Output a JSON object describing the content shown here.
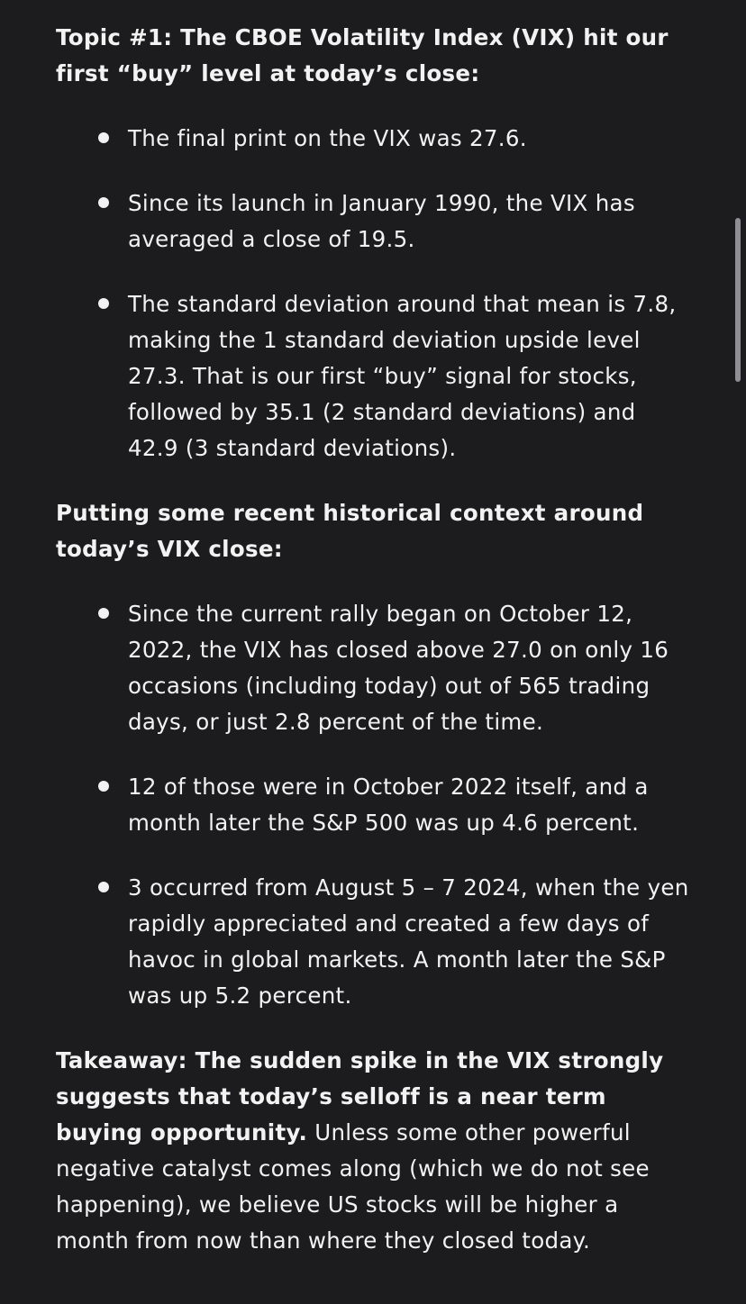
{
  "topic1": {
    "heading": "Topic #1: The CBOE Volatility Index (VIX) hit our first “buy” level at today’s close:",
    "bullets": [
      "The final print on the VIX was 27.6.",
      "Since its launch in January 1990, the VIX has averaged a close of 19.5.",
      "The standard deviation around that mean is 7.8, making the 1 standard deviation upside level 27.3. That is our first “buy” signal for stocks, followed by 35.1 (2 standard deviations) and 42.9 (3 standard deviations)."
    ]
  },
  "context": {
    "heading": "Putting some recent historical context around today’s VIX close:",
    "bullets": [
      "Since the current rally began on October 12, 2022, the VIX has closed above 27.0 on only 16 occasions (including today) out of 565 trading days, or just 2.8 percent of the time.",
      "12 of those were in October 2022 itself, and a month later the S&P 500 was up 4.6 percent.",
      "3 occurred from August 5 – 7 2024, when the yen rapidly appreciated and created a few days of havoc in global markets. A month later the S&P was up 5.2 percent."
    ]
  },
  "takeaway": {
    "bold": "Takeaway: The sudden spike in the VIX strongly suggests that today’s selloff is a near term buying opportunity.",
    "rest": " Unless some other powerful negative catalyst comes along (which we do not see happening), we believe US stocks will be higher a month from now than where they closed today."
  },
  "colors": {
    "background": "#1c1c1e",
    "text": "#f2f2f2",
    "scrollbar": "#8e8e93"
  }
}
